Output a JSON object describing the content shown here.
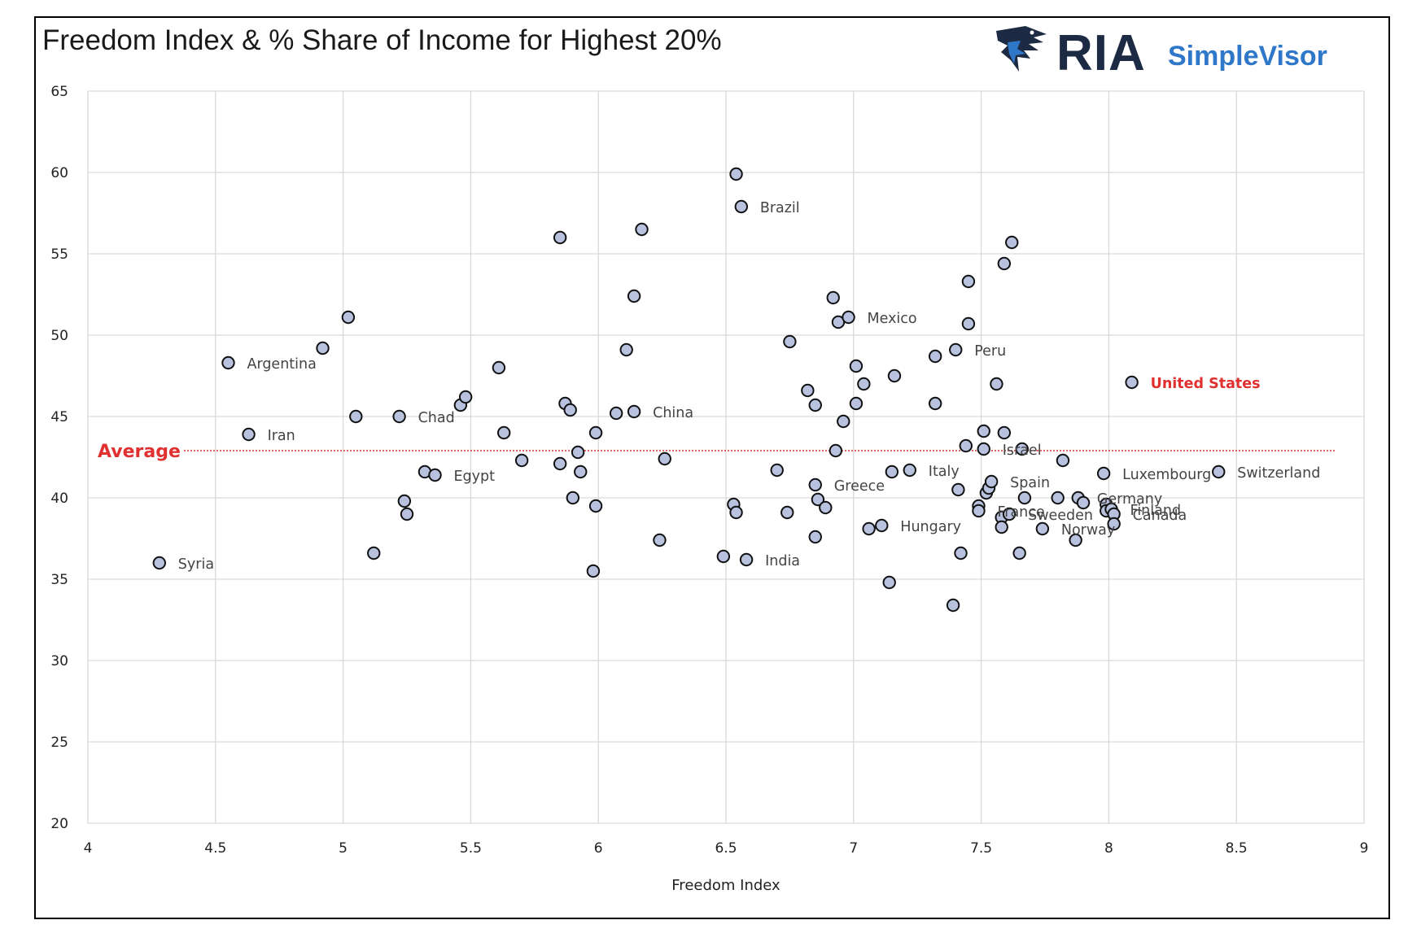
{
  "title": "Freedom Index & % Share of Income for Highest 20%",
  "brand": {
    "ria": "RIA",
    "simplevisor": "SimpleVisor",
    "icon": "eagle-icon",
    "color_dark": "#1c2a44",
    "color_accent": "#2f77c8"
  },
  "colors": {
    "point_fill": "#b8c2de",
    "point_stroke": "#111111",
    "grid": "#d9d9d9",
    "highlight": "#e03030"
  },
  "chart_data": {
    "type": "scatter",
    "xlabel": "Freedom Index",
    "ylabel": "",
    "xlim": [
      4,
      9
    ],
    "ylim": [
      20,
      65
    ],
    "xticks": [
      "4",
      "4.5",
      "5",
      "5.5",
      "6",
      "6.5",
      "7",
      "7.5",
      "8",
      "8.5",
      "9"
    ],
    "yticks": [
      "20",
      "25",
      "30",
      "35",
      "40",
      "45",
      "50",
      "55",
      "60",
      "65"
    ],
    "grid": true,
    "average": {
      "label": "Average",
      "value": 42.9
    },
    "points": [
      {
        "x": 4.28,
        "y": 36.0,
        "label": "Syria"
      },
      {
        "x": 4.55,
        "y": 48.3,
        "label": "Argentina"
      },
      {
        "x": 4.63,
        "y": 43.9,
        "label": "Iran"
      },
      {
        "x": 4.92,
        "y": 49.2
      },
      {
        "x": 5.02,
        "y": 51.1
      },
      {
        "x": 5.05,
        "y": 45.0
      },
      {
        "x": 5.12,
        "y": 36.6
      },
      {
        "x": 5.22,
        "y": 45.0,
        "label": "Chad"
      },
      {
        "x": 5.24,
        "y": 39.8
      },
      {
        "x": 5.25,
        "y": 39.0
      },
      {
        "x": 5.32,
        "y": 41.6
      },
      {
        "x": 5.36,
        "y": 41.4,
        "label": "Egypt"
      },
      {
        "x": 5.46,
        "y": 45.7
      },
      {
        "x": 5.48,
        "y": 46.2
      },
      {
        "x": 5.61,
        "y": 48.0
      },
      {
        "x": 5.63,
        "y": 44.0
      },
      {
        "x": 5.7,
        "y": 42.3
      },
      {
        "x": 5.85,
        "y": 42.1
      },
      {
        "x": 5.85,
        "y": 56.0
      },
      {
        "x": 5.87,
        "y": 45.8
      },
      {
        "x": 5.89,
        "y": 45.4
      },
      {
        "x": 5.9,
        "y": 40.0
      },
      {
        "x": 5.92,
        "y": 42.8
      },
      {
        "x": 5.93,
        "y": 41.6
      },
      {
        "x": 5.98,
        "y": 35.5
      },
      {
        "x": 5.99,
        "y": 39.5
      },
      {
        "x": 5.99,
        "y": 44.0
      },
      {
        "x": 6.07,
        "y": 45.2
      },
      {
        "x": 6.11,
        "y": 49.1
      },
      {
        "x": 6.14,
        "y": 52.4
      },
      {
        "x": 6.14,
        "y": 45.3,
        "label": "China"
      },
      {
        "x": 6.17,
        "y": 56.5
      },
      {
        "x": 6.24,
        "y": 37.4
      },
      {
        "x": 6.26,
        "y": 42.4
      },
      {
        "x": 6.49,
        "y": 36.4
      },
      {
        "x": 6.53,
        "y": 39.6
      },
      {
        "x": 6.54,
        "y": 39.1
      },
      {
        "x": 6.54,
        "y": 59.9
      },
      {
        "x": 6.56,
        "y": 57.9,
        "label": "Brazil"
      },
      {
        "x": 6.58,
        "y": 36.2,
        "label": "India"
      },
      {
        "x": 6.7,
        "y": 41.7
      },
      {
        "x": 6.74,
        "y": 39.1
      },
      {
        "x": 6.75,
        "y": 49.6
      },
      {
        "x": 6.82,
        "y": 46.6
      },
      {
        "x": 6.85,
        "y": 45.7
      },
      {
        "x": 6.85,
        "y": 40.8,
        "label": "Greece"
      },
      {
        "x": 6.85,
        "y": 37.6
      },
      {
        "x": 6.86,
        "y": 39.9
      },
      {
        "x": 6.89,
        "y": 39.4
      },
      {
        "x": 6.92,
        "y": 52.3
      },
      {
        "x": 6.93,
        "y": 42.9
      },
      {
        "x": 6.94,
        "y": 50.8
      },
      {
        "x": 6.96,
        "y": 44.7
      },
      {
        "x": 6.98,
        "y": 51.1,
        "label": "Mexico"
      },
      {
        "x": 7.01,
        "y": 45.8
      },
      {
        "x": 7.01,
        "y": 48.1
      },
      {
        "x": 7.04,
        "y": 47.0
      },
      {
        "x": 7.06,
        "y": 38.1
      },
      {
        "x": 7.11,
        "y": 38.3,
        "label": "Hungary"
      },
      {
        "x": 7.14,
        "y": 34.8
      },
      {
        "x": 7.15,
        "y": 41.6
      },
      {
        "x": 7.16,
        "y": 47.5
      },
      {
        "x": 7.22,
        "y": 41.7,
        "label": "Italy"
      },
      {
        "x": 7.32,
        "y": 48.7
      },
      {
        "x": 7.32,
        "y": 45.8
      },
      {
        "x": 7.39,
        "y": 33.4
      },
      {
        "x": 7.4,
        "y": 49.1,
        "label": "Peru"
      },
      {
        "x": 7.41,
        "y": 40.5
      },
      {
        "x": 7.42,
        "y": 36.6
      },
      {
        "x": 7.44,
        "y": 43.2
      },
      {
        "x": 7.45,
        "y": 53.3
      },
      {
        "x": 7.45,
        "y": 50.7
      },
      {
        "x": 7.49,
        "y": 39.5
      },
      {
        "x": 7.49,
        "y": 39.2,
        "label": "France"
      },
      {
        "x": 7.51,
        "y": 44.1
      },
      {
        "x": 7.51,
        "y": 43.0,
        "label": "Israel"
      },
      {
        "x": 7.52,
        "y": 40.3
      },
      {
        "x": 7.53,
        "y": 40.6
      },
      {
        "x": 7.54,
        "y": 41.0,
        "label": "Spain"
      },
      {
        "x": 7.56,
        "y": 47.0
      },
      {
        "x": 7.58,
        "y": 38.8
      },
      {
        "x": 7.58,
        "y": 38.2
      },
      {
        "x": 7.59,
        "y": 44.0
      },
      {
        "x": 7.59,
        "y": 54.4
      },
      {
        "x": 7.61,
        "y": 39.0,
        "label": "Sweeden"
      },
      {
        "x": 7.62,
        "y": 55.7
      },
      {
        "x": 7.65,
        "y": 36.6
      },
      {
        "x": 7.66,
        "y": 43.0
      },
      {
        "x": 7.67,
        "y": 40.0
      },
      {
        "x": 7.74,
        "y": 38.1,
        "label": "Norway"
      },
      {
        "x": 7.8,
        "y": 40.0
      },
      {
        "x": 7.82,
        "y": 42.3
      },
      {
        "x": 7.87,
        "y": 37.4
      },
      {
        "x": 7.88,
        "y": 40.0,
        "label": "Germany"
      },
      {
        "x": 7.9,
        "y": 39.7
      },
      {
        "x": 7.98,
        "y": 41.5,
        "label": "Luxembourg"
      },
      {
        "x": 7.99,
        "y": 39.6
      },
      {
        "x": 7.99,
        "y": 39.2
      },
      {
        "x": 8.01,
        "y": 39.3,
        "label": "Finland"
      },
      {
        "x": 8.02,
        "y": 39.0,
        "label": "Canada"
      },
      {
        "x": 8.02,
        "y": 38.4
      },
      {
        "x": 8.09,
        "y": 47.1,
        "label": "United States",
        "highlight": true
      },
      {
        "x": 8.43,
        "y": 41.6,
        "label": "Switzerland"
      }
    ]
  }
}
